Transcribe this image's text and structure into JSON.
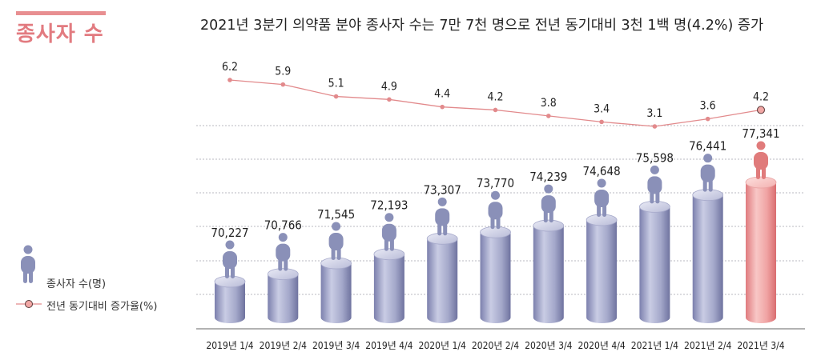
{
  "section_title": "종사자 수",
  "headline": "2021년 3분기 의약품 분야 종사자 수는 7만 7천 명으로 전년 동기대비 3천 1백 명(4.2%) 증가",
  "legend": {
    "bars": "종사자 수(명)",
    "line": "전년 동기대비 증가율(%)"
  },
  "colors": {
    "bar": "#9fa3c6",
    "bar_highlight": "#ef9a9a",
    "person": "#8a90b8",
    "person_highlight": "#e07b7b",
    "line": "#e28a8c",
    "grid": "#b8b8c0"
  },
  "chart_data": {
    "type": "bar",
    "categories": [
      "2019년 1/4",
      "2019년 2/4",
      "2019년 3/4",
      "2019년 4/4",
      "2020년 1/4",
      "2020년 2/4",
      "2020년 3/4",
      "2020년 4/4",
      "2021년 1/4",
      "2021년 2/4",
      "2021년 3/4"
    ],
    "series": [
      {
        "name": "종사자 수(명)",
        "type": "bar",
        "values": [
          70227,
          70766,
          71545,
          72193,
          73307,
          73770,
          74239,
          74648,
          75598,
          76441,
          77341
        ],
        "labels": [
          "70,227",
          "70,766",
          "71,545",
          "72,193",
          "73,307",
          "73,770",
          "74,239",
          "74,648",
          "75,598",
          "76,441",
          "77,341"
        ]
      },
      {
        "name": "전년 동기대비 증가율(%)",
        "type": "line",
        "values": [
          6.2,
          5.9,
          5.1,
          4.9,
          4.4,
          4.2,
          3.8,
          3.4,
          3.1,
          3.6,
          4.2
        ],
        "labels": [
          "6.2",
          "5.9",
          "5.1",
          "4.9",
          "4.4",
          "4.2",
          "3.8",
          "3.4",
          "3.1",
          "3.6",
          "4.2"
        ]
      }
    ],
    "highlight_index": 10,
    "grid": true
  }
}
